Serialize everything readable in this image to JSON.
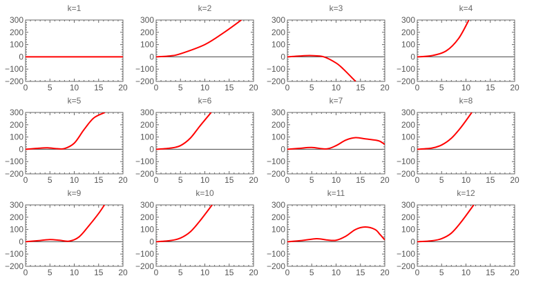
{
  "chart_data": [
    {
      "type": "line",
      "title": "k=1",
      "xlim": [
        0,
        20
      ],
      "ylim": [
        -200,
        300
      ],
      "xticks": [
        0,
        5,
        10,
        15,
        20
      ],
      "yticks": [
        300,
        200,
        100,
        0,
        -100,
        -200
      ],
      "color": "#ff0000",
      "points": [
        [
          0,
          0
        ],
        [
          20,
          0
        ]
      ]
    },
    {
      "type": "line",
      "title": "k=2",
      "xlim": [
        0,
        20
      ],
      "ylim": [
        -200,
        300
      ],
      "xticks": [
        0,
        5,
        10,
        15,
        20
      ],
      "yticks": [
        300,
        200,
        100,
        0,
        -100,
        -200
      ],
      "color": "#ff0000",
      "points": [
        [
          0,
          0
        ],
        [
          3,
          8
        ],
        [
          5,
          25
        ],
        [
          10,
          100
        ],
        [
          14,
          200
        ],
        [
          17.5,
          300
        ]
      ]
    },
    {
      "type": "line",
      "title": "k=3",
      "xlim": [
        0,
        20
      ],
      "ylim": [
        -200,
        300
      ],
      "xticks": [
        0,
        5,
        10,
        15,
        20
      ],
      "yticks": [
        300,
        200,
        100,
        0,
        -100,
        -200
      ],
      "color": "#ff0000",
      "points": [
        [
          0,
          0
        ],
        [
          3,
          8
        ],
        [
          5,
          10
        ],
        [
          7.5,
          0
        ],
        [
          10,
          -50
        ],
        [
          11.5,
          -100
        ],
        [
          14,
          -200
        ]
      ]
    },
    {
      "type": "line",
      "title": "k=4",
      "xlim": [
        0,
        20
      ],
      "ylim": [
        -200,
        300
      ],
      "xticks": [
        0,
        5,
        10,
        15,
        20
      ],
      "yticks": [
        300,
        200,
        100,
        0,
        -100,
        -200
      ],
      "color": "#ff0000",
      "points": [
        [
          0,
          0
        ],
        [
          3,
          10
        ],
        [
          6,
          50
        ],
        [
          8.5,
          150
        ],
        [
          10.6,
          300
        ]
      ]
    },
    {
      "type": "line",
      "title": "k=5",
      "xlim": [
        0,
        20
      ],
      "ylim": [
        -200,
        300
      ],
      "xticks": [
        0,
        5,
        10,
        15,
        20
      ],
      "yticks": [
        300,
        200,
        100,
        0,
        -100,
        -200
      ],
      "color": "#ff0000",
      "points": [
        [
          0,
          0
        ],
        [
          2.5,
          8
        ],
        [
          4.5,
          12
        ],
        [
          6.5,
          5
        ],
        [
          8,
          6
        ],
        [
          10,
          50
        ],
        [
          12,
          160
        ],
        [
          14,
          255
        ],
        [
          16.3,
          300
        ]
      ]
    },
    {
      "type": "line",
      "title": "k=6",
      "xlim": [
        0,
        20
      ],
      "ylim": [
        -200,
        300
      ],
      "xticks": [
        0,
        5,
        10,
        15,
        20
      ],
      "yticks": [
        300,
        200,
        100,
        0,
        -100,
        -200
      ],
      "color": "#ff0000",
      "points": [
        [
          0,
          0
        ],
        [
          3,
          10
        ],
        [
          5,
          30
        ],
        [
          7,
          90
        ],
        [
          9,
          190
        ],
        [
          11.3,
          300
        ]
      ]
    },
    {
      "type": "line",
      "title": "k=7",
      "xlim": [
        0,
        20
      ],
      "ylim": [
        -200,
        300
      ],
      "xticks": [
        0,
        5,
        10,
        15,
        20
      ],
      "yticks": [
        300,
        200,
        100,
        0,
        -100,
        -200
      ],
      "color": "#ff0000",
      "points": [
        [
          0,
          0
        ],
        [
          2.5,
          8
        ],
        [
          5,
          15
        ],
        [
          8,
          3
        ],
        [
          10,
          30
        ],
        [
          12,
          75
        ],
        [
          14,
          95
        ],
        [
          16,
          85
        ],
        [
          18,
          75
        ],
        [
          19,
          65
        ],
        [
          20,
          40
        ]
      ]
    },
    {
      "type": "line",
      "title": "k=8",
      "xlim": [
        0,
        20
      ],
      "ylim": [
        -200,
        300
      ],
      "xticks": [
        0,
        5,
        10,
        15,
        20
      ],
      "yticks": [
        300,
        200,
        100,
        0,
        -100,
        -200
      ],
      "color": "#ff0000",
      "points": [
        [
          0,
          0
        ],
        [
          3,
          10
        ],
        [
          5,
          35
        ],
        [
          7,
          90
        ],
        [
          9,
          180
        ],
        [
          11.2,
          300
        ]
      ]
    },
    {
      "type": "line",
      "title": "k=9",
      "xlim": [
        0,
        20
      ],
      "ylim": [
        -200,
        300
      ],
      "xticks": [
        0,
        5,
        10,
        15,
        20
      ],
      "yticks": [
        300,
        200,
        100,
        0,
        -100,
        -200
      ],
      "color": "#ff0000",
      "points": [
        [
          0,
          0
        ],
        [
          3,
          10
        ],
        [
          5,
          18
        ],
        [
          7,
          12
        ],
        [
          9,
          5
        ],
        [
          11,
          40
        ],
        [
          13,
          130
        ],
        [
          15,
          230
        ],
        [
          16.2,
          300
        ]
      ]
    },
    {
      "type": "line",
      "title": "k=10",
      "xlim": [
        0,
        20
      ],
      "ylim": [
        -200,
        300
      ],
      "xticks": [
        0,
        5,
        10,
        15,
        20
      ],
      "yticks": [
        300,
        200,
        100,
        0,
        -100,
        -200
      ],
      "color": "#ff0000",
      "points": [
        [
          0,
          0
        ],
        [
          3,
          10
        ],
        [
          5,
          30
        ],
        [
          7,
          80
        ],
        [
          9,
          170
        ],
        [
          11.5,
          300
        ]
      ]
    },
    {
      "type": "line",
      "title": "k=11",
      "xlim": [
        0,
        20
      ],
      "ylim": [
        -200,
        300
      ],
      "xticks": [
        0,
        5,
        10,
        15,
        20
      ],
      "yticks": [
        300,
        200,
        100,
        0,
        -100,
        -200
      ],
      "color": "#ff0000",
      "points": [
        [
          0,
          0
        ],
        [
          3,
          10
        ],
        [
          6,
          25
        ],
        [
          8,
          15
        ],
        [
          10,
          12
        ],
        [
          12,
          45
        ],
        [
          14,
          100
        ],
        [
          16,
          120
        ],
        [
          18,
          100
        ],
        [
          19,
          60
        ],
        [
          20,
          15
        ]
      ]
    },
    {
      "type": "line",
      "title": "k=12",
      "xlim": [
        0,
        20
      ],
      "ylim": [
        -200,
        300
      ],
      "xticks": [
        0,
        5,
        10,
        15,
        20
      ],
      "yticks": [
        300,
        200,
        100,
        0,
        -100,
        -200
      ],
      "color": "#ff0000",
      "points": [
        [
          0,
          0
        ],
        [
          3,
          8
        ],
        [
          5,
          25
        ],
        [
          7,
          70
        ],
        [
          9,
          160
        ],
        [
          11.6,
          300
        ]
      ]
    }
  ]
}
